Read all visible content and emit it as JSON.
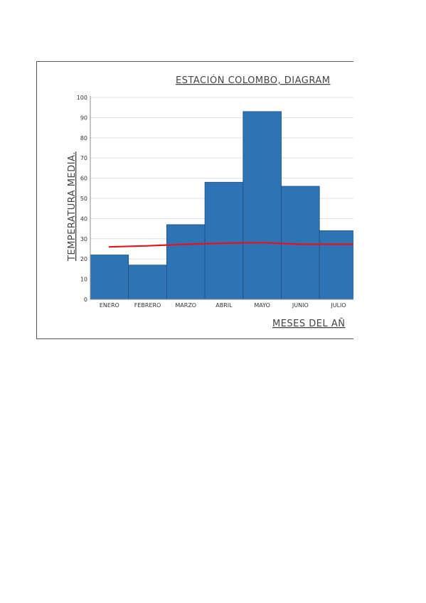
{
  "chart_data": {
    "type": "bar",
    "title": "ESTACIÓN COLOMBO, DIAGRAM",
    "xlabel": "MESES DEL AÑ",
    "ylabel": "TEMPERATURA MEDIA.",
    "categories": [
      "ENERO",
      "FEBRERO",
      "MARZO",
      "ABRIL",
      "MAYO",
      "JUNIO",
      "JULIO"
    ],
    "series": [
      {
        "type": "bar",
        "color": "#2e74b5",
        "values": [
          22,
          17,
          37,
          58,
          93,
          56,
          34
        ]
      },
      {
        "type": "line",
        "color": "#e8121b",
        "values": [
          26,
          26.5,
          27.3,
          27.8,
          28.1,
          27.3,
          27.3
        ]
      }
    ],
    "ylim": [
      0,
      100
    ],
    "yticks": [
      0,
      10,
      20,
      30,
      40,
      50,
      60,
      70,
      80,
      90,
      100
    ],
    "grid": true,
    "legend": "none"
  }
}
